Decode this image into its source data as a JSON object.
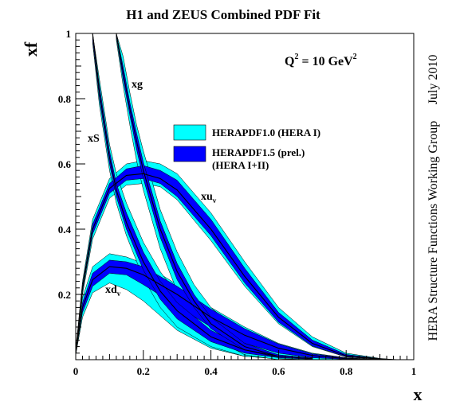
{
  "chart_data": {
    "type": "area",
    "title": "H1 and ZEUS Combined PDF Fit",
    "xlabel": "x",
    "ylabel": "xf",
    "xlim": [
      0,
      1
    ],
    "ylim": [
      0,
      1
    ],
    "x_ticks": [
      "0",
      "0.2",
      "0.4",
      "0.6",
      "0.8",
      "1"
    ],
    "y_ticks": [
      "0.2",
      "0.4",
      "0.6",
      "0.8",
      "1"
    ],
    "annotation": "Q² = 10 GeV²",
    "annotation_parts": {
      "main": "Q",
      "sup1": "2",
      "mid": " = 10 GeV",
      "sup2": "2"
    },
    "side_text_top": "July 2010",
    "side_text_bottom": "HERA Structure Functions Working Group",
    "legend": {
      "placement": "center-right",
      "entries": [
        {
          "label_lines": [
            "HERAPDF1.0 (HERA I)"
          ],
          "color": "#00ffff"
        },
        {
          "label_lines": [
            "HERAPDF1.5 (prel.)",
            "(HERA I+II)"
          ],
          "color": "#0000ff"
        }
      ]
    },
    "series_labels": {
      "xg": {
        "main": "xg",
        "sub": ""
      },
      "xS": {
        "main": "xS",
        "sub": ""
      },
      "xuv": {
        "main": "xu",
        "sub": "v"
      },
      "xdv": {
        "main": "xd",
        "sub": "v"
      }
    },
    "colors": {
      "hera1": "#00ffff",
      "hera15": "#0000ff",
      "central": "#000000"
    },
    "series": [
      {
        "id": "xuv",
        "x": [
          0.001,
          0.02,
          0.05,
          0.1,
          0.15,
          0.2,
          0.25,
          0.3,
          0.4,
          0.5,
          0.6,
          0.7,
          0.8,
          0.9,
          0.95
        ],
        "central": [
          0.03,
          0.22,
          0.4,
          0.525,
          0.565,
          0.57,
          0.555,
          0.52,
          0.4,
          0.255,
          0.13,
          0.05,
          0.012,
          0.002,
          0.0
        ],
        "hera1_lo": [
          0.02,
          0.2,
          0.37,
          0.495,
          0.535,
          0.54,
          0.53,
          0.49,
          0.365,
          0.225,
          0.11,
          0.04,
          0.008,
          0.001,
          0.0
        ],
        "hera1_hi": [
          0.04,
          0.24,
          0.43,
          0.555,
          0.6,
          0.61,
          0.6,
          0.57,
          0.45,
          0.3,
          0.16,
          0.07,
          0.02,
          0.004,
          0.0
        ],
        "hera15_lo": [
          0.025,
          0.21,
          0.385,
          0.51,
          0.55,
          0.555,
          0.54,
          0.5,
          0.38,
          0.235,
          0.115,
          0.042,
          0.009,
          0.0015,
          0.0
        ],
        "hera15_hi": [
          0.035,
          0.23,
          0.415,
          0.54,
          0.585,
          0.595,
          0.58,
          0.55,
          0.43,
          0.28,
          0.145,
          0.06,
          0.016,
          0.003,
          0.0
        ]
      },
      {
        "id": "xdv",
        "x": [
          0.001,
          0.02,
          0.05,
          0.1,
          0.15,
          0.2,
          0.3,
          0.4,
          0.5,
          0.6,
          0.7,
          0.8,
          0.9
        ],
        "central": [
          0.03,
          0.16,
          0.245,
          0.285,
          0.28,
          0.26,
          0.2,
          0.13,
          0.075,
          0.035,
          0.013,
          0.003,
          0.0
        ],
        "hera1_lo": [
          0.02,
          0.13,
          0.205,
          0.235,
          0.215,
          0.18,
          0.09,
          0.035,
          0.01,
          0.003,
          0.0,
          0.0,
          0.0
        ],
        "hera1_hi": [
          0.04,
          0.19,
          0.285,
          0.325,
          0.315,
          0.295,
          0.23,
          0.16,
          0.1,
          0.05,
          0.02,
          0.006,
          0.0
        ],
        "hera15_lo": [
          0.025,
          0.145,
          0.225,
          0.265,
          0.26,
          0.23,
          0.165,
          0.1,
          0.05,
          0.02,
          0.006,
          0.001,
          0.0
        ],
        "hera15_hi": [
          0.035,
          0.175,
          0.265,
          0.305,
          0.3,
          0.285,
          0.225,
          0.155,
          0.095,
          0.048,
          0.018,
          0.005,
          0.0
        ]
      },
      {
        "id": "xS",
        "x": [
          0.05,
          0.07,
          0.1,
          0.12,
          0.15,
          0.2,
          0.25,
          0.3,
          0.4,
          0.5,
          0.6,
          0.7
        ],
        "central": [
          1.0,
          0.82,
          0.62,
          0.52,
          0.42,
          0.3,
          0.21,
          0.15,
          0.07,
          0.03,
          0.01,
          0.003
        ],
        "hera1_lo": [
          0.97,
          0.78,
          0.58,
          0.48,
          0.38,
          0.25,
          0.16,
          0.1,
          0.04,
          0.01,
          0.003,
          0.0
        ],
        "hera1_hi": [
          1.0,
          0.86,
          0.66,
          0.57,
          0.48,
          0.36,
          0.27,
          0.2,
          0.11,
          0.055,
          0.025,
          0.01
        ],
        "hera15_lo": [
          0.98,
          0.8,
          0.6,
          0.5,
          0.4,
          0.275,
          0.185,
          0.125,
          0.055,
          0.02,
          0.006,
          0.001
        ],
        "hera15_hi": [
          1.0,
          0.84,
          0.64,
          0.54,
          0.45,
          0.33,
          0.24,
          0.175,
          0.09,
          0.04,
          0.015,
          0.005
        ]
      },
      {
        "id": "xg",
        "x": [
          0.12,
          0.14,
          0.16,
          0.18,
          0.2,
          0.25,
          0.3,
          0.35,
          0.4,
          0.5,
          0.6
        ],
        "central": [
          1.0,
          0.88,
          0.77,
          0.67,
          0.58,
          0.4,
          0.27,
          0.18,
          0.11,
          0.04,
          0.01
        ],
        "hera1_lo": [
          0.98,
          0.84,
          0.72,
          0.61,
          0.52,
          0.34,
          0.21,
          0.13,
          0.07,
          0.015,
          0.0
        ],
        "hera1_hi": [
          1.0,
          0.93,
          0.82,
          0.72,
          0.64,
          0.46,
          0.33,
          0.23,
          0.16,
          0.07,
          0.025
        ],
        "hera15_lo": [
          0.99,
          0.86,
          0.75,
          0.645,
          0.555,
          0.375,
          0.245,
          0.16,
          0.095,
          0.03,
          0.006
        ],
        "hera15_hi": [
          1.0,
          0.9,
          0.79,
          0.695,
          0.605,
          0.425,
          0.295,
          0.2,
          0.13,
          0.05,
          0.015
        ]
      }
    ]
  }
}
